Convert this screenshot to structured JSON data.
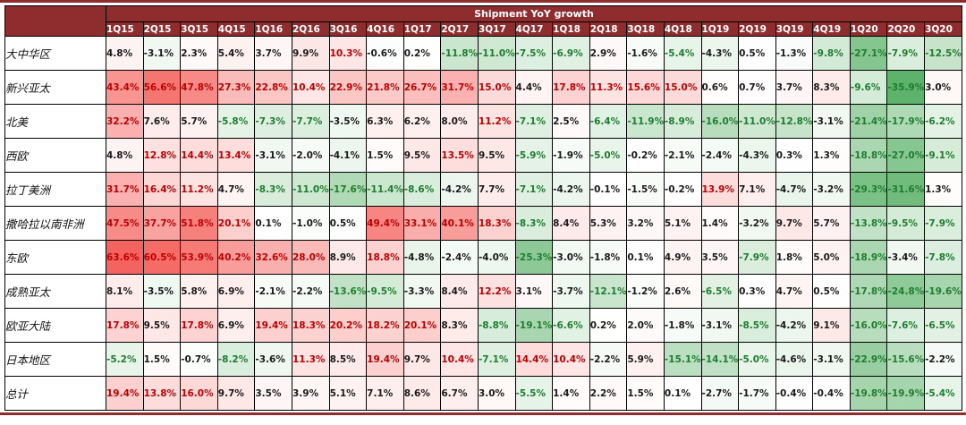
{
  "figure": {
    "title": "Shipment YoY growth"
  },
  "colors": {
    "header_bg": "#8e2c2e",
    "rule": "#8e2c2e",
    "border": "#000000",
    "text_red": "#c00000",
    "text_green": "#1e7d2e",
    "text_neutral": "#1a1a1a",
    "bg_pos_max": "#f4605b",
    "bg_neg_max": "#4baa5a",
    "bg_neutral": "#ffffff"
  },
  "chart_data": {
    "type": "heatmap",
    "title": "Shipment YoY growth",
    "unit": "%",
    "columns": [
      "1Q15",
      "2Q15",
      "3Q15",
      "4Q15",
      "1Q16",
      "2Q16",
      "3Q16",
      "4Q16",
      "1Q17",
      "2Q17",
      "3Q17",
      "4Q17",
      "1Q18",
      "2Q18",
      "3Q18",
      "4Q18",
      "1Q19",
      "2Q19",
      "3Q19",
      "4Q19",
      "1Q20",
      "2Q20",
      "3Q20"
    ],
    "rows": [
      {
        "label": "大中华区",
        "values": [
          4.8,
          -3.1,
          2.3,
          5.4,
          3.7,
          9.9,
          10.3,
          -0.6,
          0.2,
          -11.8,
          -11.0,
          -7.5,
          -6.9,
          2.9,
          -1.6,
          -5.4,
          -4.3,
          0.5,
          -1.3,
          -9.8,
          -27.1,
          -7.9,
          -12.5
        ]
      },
      {
        "label": "新兴亚太",
        "values": [
          43.4,
          56.6,
          47.8,
          27.3,
          22.8,
          10.4,
          22.9,
          21.8,
          26.7,
          31.7,
          15.0,
          4.4,
          17.8,
          11.3,
          15.6,
          15.0,
          0.6,
          0.7,
          3.7,
          8.3,
          -9.6,
          -35.9,
          3.0
        ]
      },
      {
        "label": "北美",
        "values": [
          32.2,
          7.6,
          5.7,
          -5.8,
          -7.3,
          -7.7,
          -3.5,
          6.3,
          6.2,
          8.0,
          11.2,
          -7.1,
          2.5,
          -6.4,
          -11.9,
          -8.9,
          -16.0,
          -11.0,
          -12.8,
          -3.1,
          -21.4,
          -17.9,
          -6.2
        ]
      },
      {
        "label": "西欧",
        "values": [
          4.8,
          12.8,
          14.4,
          13.4,
          -3.1,
          -2.0,
          -4.1,
          1.5,
          9.5,
          13.5,
          9.5,
          -5.9,
          -1.9,
          -5.0,
          -0.2,
          -2.1,
          -2.4,
          -4.3,
          0.3,
          1.3,
          -18.8,
          -27.0,
          -9.1
        ]
      },
      {
        "label": "拉丁美洲",
        "values": [
          31.7,
          16.4,
          11.2,
          4.7,
          -8.3,
          -11.0,
          -17.6,
          -11.4,
          -8.6,
          -4.2,
          7.7,
          -7.1,
          -4.2,
          -0.1,
          -1.5,
          -0.2,
          13.9,
          7.1,
          -4.7,
          -3.2,
          -29.3,
          -31.6,
          1.3
        ]
      },
      {
        "label": "撒哈拉以南非洲",
        "values": [
          47.5,
          37.7,
          51.8,
          20.1,
          0.1,
          -1.0,
          0.5,
          49.4,
          33.1,
          40.1,
          18.3,
          -8.3,
          8.4,
          5.3,
          3.2,
          5.1,
          1.4,
          -3.2,
          9.7,
          5.7,
          -13.8,
          -9.5,
          -7.9
        ]
      },
      {
        "label": "东欧",
        "values": [
          63.6,
          60.5,
          53.9,
          40.2,
          32.6,
          28.0,
          8.9,
          18.8,
          -4.8,
          -2.4,
          -4.0,
          -25.3,
          -3.0,
          -1.8,
          0.1,
          4.9,
          3.5,
          -7.9,
          1.8,
          5.0,
          -18.9,
          -3.4,
          -7.8
        ]
      },
      {
        "label": "成熟亚太",
        "values": [
          8.1,
          -3.5,
          5.8,
          6.9,
          -2.1,
          -2.2,
          -13.6,
          -9.5,
          -3.3,
          8.4,
          12.2,
          3.1,
          -3.7,
          -12.1,
          -1.2,
          2.6,
          -6.5,
          0.3,
          4.7,
          0.5,
          -17.8,
          -24.8,
          -19.6
        ]
      },
      {
        "label": "欧亚大陆",
        "values": [
          17.8,
          9.5,
          17.8,
          6.9,
          19.4,
          18.3,
          20.2,
          18.2,
          20.1,
          8.3,
          -8.8,
          -19.1,
          -6.6,
          0.2,
          2.0,
          -1.8,
          -3.1,
          -8.5,
          -4.2,
          9.1,
          -16.0,
          -7.6,
          -6.5
        ]
      },
      {
        "label": "日本地区",
        "values": [
          -5.2,
          1.5,
          -0.7,
          -8.2,
          -3.6,
          11.3,
          8.5,
          19.4,
          9.7,
          10.4,
          -7.1,
          14.4,
          10.4,
          -2.2,
          5.9,
          -15.1,
          -14.1,
          -5.0,
          -4.6,
          -3.1,
          -22.9,
          -15.6,
          -2.2
        ]
      },
      {
        "label": "总计",
        "values": [
          19.4,
          13.8,
          16.0,
          9.7,
          3.5,
          3.9,
          5.1,
          7.1,
          8.6,
          6.7,
          3.0,
          -5.5,
          1.4,
          2.2,
          1.5,
          0.1,
          -2.7,
          -1.7,
          -0.4,
          -0.4,
          -19.8,
          -19.9,
          -5.4
        ]
      }
    ],
    "color_rules": {
      "text_red_if_gte": 10,
      "text_green_if_lte": -5,
      "bg_scale_pos_max": 65,
      "bg_scale_neg_max": 40
    }
  }
}
